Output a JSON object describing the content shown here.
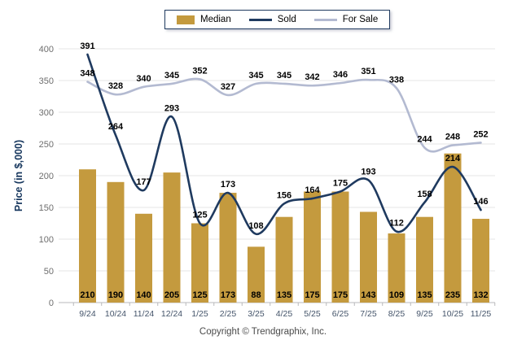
{
  "chart_data": {
    "type": "bar",
    "combo": "bar+line",
    "title": "",
    "xlabel": "",
    "ylabel": "Price (in $,000)",
    "ylim": [
      0,
      400
    ],
    "yticks": [
      0,
      50,
      100,
      150,
      200,
      250,
      300,
      350,
      400
    ],
    "grid": true,
    "legend_position": "top-center",
    "categories": [
      "9/24",
      "10/24",
      "11/24",
      "12/24",
      "1/25",
      "2/25",
      "3/25",
      "4/25",
      "5/25",
      "6/25",
      "7/25",
      "8/25",
      "9/25",
      "10/25",
      "11/25"
    ],
    "series": [
      {
        "name": "Median",
        "type": "bar",
        "color": "#C49A3E",
        "values": [
          210,
          190,
          140,
          205,
          125,
          173,
          88,
          135,
          175,
          175,
          143,
          109,
          135,
          235,
          132
        ]
      },
      {
        "name": "Sold",
        "type": "line",
        "color": "#1F3A5F",
        "values": [
          391,
          264,
          177,
          293,
          125,
          173,
          108,
          156,
          164,
          175,
          193,
          112,
          158,
          214,
          146
        ]
      },
      {
        "name": "For Sale",
        "type": "line",
        "color": "#B3BAD1",
        "values": [
          348,
          328,
          340,
          345,
          352,
          327,
          345,
          345,
          342,
          346,
          351,
          338,
          244,
          248,
          252
        ]
      }
    ],
    "colors": {
      "gridline": "#E4E4E6",
      "axis": "#B9B9BB",
      "data_label": "#000000",
      "x_tick_label": "#44546A",
      "y_tick_label": "#6E6E6E",
      "y_axis_title": "#17375E"
    }
  },
  "footer": {
    "copyright": "Copyright © Trendgraphix, Inc."
  }
}
